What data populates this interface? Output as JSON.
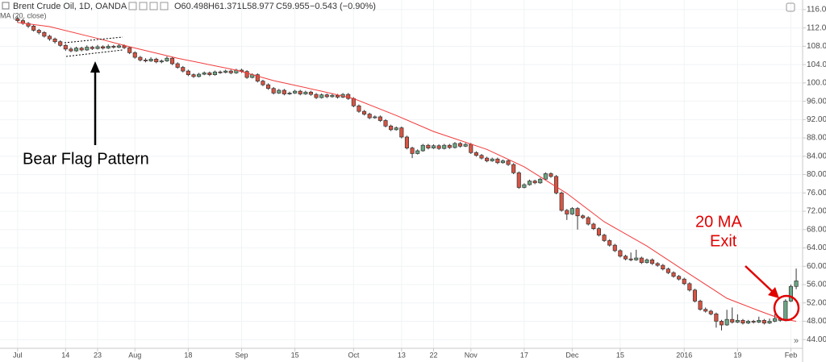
{
  "chart_data": {
    "type": "candlestick",
    "title": "Brent Crude Oil, 1D, OANDA",
    "legend_values": [
      "O60.498",
      "H61.371",
      "L58.977",
      "C59.955",
      "−0.543 (−0.90%)"
    ],
    "up_color": "#6ba583",
    "down_color": "#d75442",
    "ohlc": [
      [
        114.0,
        114.5,
        113.2,
        113.6
      ],
      [
        113.6,
        114.0,
        112.7,
        113.0
      ],
      [
        113.0,
        113.3,
        112.0,
        112.4
      ],
      [
        112.4,
        112.7,
        111.2,
        111.5
      ],
      [
        111.5,
        111.8,
        110.6,
        111.0
      ],
      [
        111.0,
        111.3,
        109.9,
        110.2
      ],
      [
        110.2,
        110.5,
        109.2,
        109.6
      ],
      [
        109.6,
        109.9,
        108.6,
        109.0
      ],
      [
        109.0,
        109.3,
        107.9,
        108.2
      ],
      [
        108.2,
        108.5,
        107.0,
        107.4
      ],
      [
        107.4,
        107.8,
        106.7,
        107.0
      ],
      [
        107.0,
        107.9,
        106.8,
        107.6
      ],
      [
        107.6,
        107.9,
        106.9,
        107.2
      ],
      [
        107.2,
        108.2,
        107.0,
        107.8
      ],
      [
        107.8,
        108.1,
        107.2,
        107.5
      ],
      [
        107.5,
        108.3,
        107.3,
        107.9
      ],
      [
        107.9,
        108.2,
        107.3,
        107.6
      ],
      [
        107.6,
        108.4,
        107.4,
        108.0
      ],
      [
        108.0,
        108.3,
        107.5,
        107.8
      ],
      [
        107.8,
        108.5,
        107.6,
        108.1
      ],
      [
        108.1,
        108.4,
        107.4,
        107.7
      ],
      [
        107.7,
        107.9,
        106.3,
        106.6
      ],
      [
        106.6,
        106.9,
        105.3,
        105.6
      ],
      [
        105.6,
        105.9,
        104.7,
        105.0
      ],
      [
        105.0,
        105.4,
        104.5,
        104.8
      ],
      [
        104.8,
        105.6,
        104.6,
        105.2
      ],
      [
        105.2,
        105.5,
        104.3,
        104.6
      ],
      [
        104.6,
        105.1,
        104.3,
        104.8
      ],
      [
        104.8,
        105.8,
        104.6,
        105.4
      ],
      [
        105.4,
        105.6,
        103.9,
        104.2
      ],
      [
        104.2,
        104.5,
        103.1,
        103.4
      ],
      [
        103.4,
        103.7,
        102.3,
        102.6
      ],
      [
        102.6,
        102.9,
        101.5,
        101.8
      ],
      [
        101.8,
        102.1,
        101.1,
        101.4
      ],
      [
        101.4,
        102.2,
        101.2,
        101.9
      ],
      [
        101.9,
        102.5,
        101.7,
        102.2
      ],
      [
        102.2,
        102.5,
        101.5,
        101.8
      ],
      [
        101.8,
        102.7,
        101.6,
        102.4
      ],
      [
        102.4,
        102.7,
        102.0,
        102.3
      ],
      [
        102.3,
        102.9,
        102.1,
        102.6
      ],
      [
        102.6,
        102.9,
        101.9,
        102.2
      ],
      [
        102.2,
        103.1,
        102.0,
        102.8
      ],
      [
        102.8,
        103.1,
        102.2,
        102.5
      ],
      [
        102.5,
        102.8,
        100.9,
        101.2
      ],
      [
        101.2,
        102.1,
        101.0,
        101.8
      ],
      [
        101.8,
        102.1,
        100.1,
        100.4
      ],
      [
        100.4,
        100.7,
        99.3,
        99.6
      ],
      [
        99.6,
        99.9,
        98.5,
        98.8
      ],
      [
        98.8,
        99.1,
        97.5,
        97.8
      ],
      [
        97.8,
        98.7,
        97.6,
        98.4
      ],
      [
        98.4,
        98.7,
        97.3,
        97.6
      ],
      [
        97.6,
        98.1,
        97.4,
        97.8
      ],
      [
        97.8,
        98.5,
        97.6,
        98.2
      ],
      [
        98.2,
        98.5,
        97.3,
        97.6
      ],
      [
        97.6,
        98.3,
        97.4,
        98.0
      ],
      [
        98.0,
        98.3,
        97.2,
        97.5
      ],
      [
        97.5,
        97.8,
        96.5,
        96.8
      ],
      [
        96.8,
        97.7,
        96.6,
        97.4
      ],
      [
        97.4,
        97.7,
        96.7,
        97.0
      ],
      [
        97.0,
        97.6,
        96.8,
        97.3
      ],
      [
        97.3,
        97.6,
        96.6,
        96.9
      ],
      [
        96.9,
        97.8,
        96.7,
        97.5
      ],
      [
        97.5,
        97.8,
        96.3,
        96.6
      ],
      [
        96.6,
        96.9,
        94.7,
        95.0
      ],
      [
        95.0,
        95.3,
        93.5,
        93.8
      ],
      [
        93.8,
        94.1,
        92.9,
        93.2
      ],
      [
        93.2,
        93.5,
        92.1,
        92.4
      ],
      [
        92.4,
        92.9,
        92.2,
        92.6
      ],
      [
        92.6,
        92.9,
        91.5,
        91.8
      ],
      [
        91.8,
        92.1,
        90.3,
        90.6
      ],
      [
        90.6,
        90.9,
        89.5,
        89.8
      ],
      [
        89.8,
        90.5,
        89.6,
        90.2
      ],
      [
        90.2,
        90.5,
        87.9,
        88.2
      ],
      [
        88.2,
        88.5,
        85.5,
        85.8
      ],
      [
        85.8,
        86.1,
        83.6,
        84.6
      ],
      [
        84.6,
        85.5,
        84.4,
        85.2
      ],
      [
        85.2,
        86.7,
        85.0,
        86.4
      ],
      [
        86.4,
        86.7,
        85.5,
        85.8
      ],
      [
        85.8,
        86.6,
        85.6,
        86.3
      ],
      [
        86.3,
        86.6,
        85.4,
        85.7
      ],
      [
        85.7,
        86.7,
        85.5,
        86.4
      ],
      [
        86.4,
        86.7,
        85.6,
        85.9
      ],
      [
        85.9,
        87.1,
        85.7,
        86.8
      ],
      [
        86.8,
        87.1,
        85.9,
        86.2
      ],
      [
        86.2,
        86.9,
        86.0,
        86.6
      ],
      [
        86.6,
        86.9,
        84.5,
        84.8
      ],
      [
        84.8,
        85.1,
        83.9,
        84.2
      ],
      [
        84.2,
        84.5,
        83.3,
        83.6
      ],
      [
        83.6,
        83.9,
        82.7,
        83.0
      ],
      [
        83.0,
        83.7,
        82.8,
        83.4
      ],
      [
        83.4,
        83.7,
        82.3,
        82.6
      ],
      [
        82.6,
        83.3,
        82.4,
        83.0
      ],
      [
        83.0,
        83.3,
        81.9,
        82.2
      ],
      [
        82.2,
        82.5,
        80.1,
        80.4
      ],
      [
        80.4,
        80.7,
        76.9,
        77.2
      ],
      [
        77.2,
        78.1,
        77.0,
        77.8
      ],
      [
        77.8,
        78.9,
        77.6,
        78.6
      ],
      [
        78.6,
        78.9,
        77.9,
        78.2
      ],
      [
        78.2,
        79.3,
        78.0,
        79.0
      ],
      [
        79.0,
        80.5,
        78.8,
        80.2
      ],
      [
        80.2,
        80.5,
        79.3,
        79.6
      ],
      [
        79.6,
        79.9,
        75.7,
        76.0
      ],
      [
        76.0,
        76.3,
        71.9,
        72.2
      ],
      [
        72.2,
        72.5,
        70.1,
        71.4
      ],
      [
        71.4,
        72.9,
        71.2,
        72.6
      ],
      [
        72.6,
        72.9,
        68.0,
        71.0
      ],
      [
        71.0,
        71.3,
        70.3,
        70.6
      ],
      [
        70.6,
        70.9,
        68.9,
        69.2
      ],
      [
        69.2,
        69.5,
        67.9,
        68.2
      ],
      [
        68.2,
        68.5,
        66.5,
        66.8
      ],
      [
        66.8,
        67.1,
        65.3,
        65.6
      ],
      [
        65.6,
        65.9,
        64.3,
        64.6
      ],
      [
        64.6,
        64.9,
        63.1,
        63.4
      ],
      [
        63.4,
        63.7,
        61.9,
        62.2
      ],
      [
        62.2,
        62.5,
        61.3,
        61.6
      ],
      [
        61.6,
        63.0,
        61.1,
        61.4
      ],
      [
        61.4,
        63.6,
        61.2,
        61.8
      ],
      [
        61.8,
        62.1,
        60.5,
        60.8
      ],
      [
        60.8,
        61.7,
        60.6,
        61.4
      ],
      [
        61.4,
        61.7,
        60.3,
        60.6
      ],
      [
        60.6,
        60.9,
        59.9,
        60.2
      ],
      [
        60.2,
        60.5,
        59.1,
        59.4
      ],
      [
        59.4,
        59.7,
        58.3,
        58.6
      ],
      [
        58.6,
        58.9,
        57.5,
        57.8
      ],
      [
        57.8,
        58.1,
        56.9,
        57.2
      ],
      [
        57.2,
        57.5,
        55.9,
        56.2
      ],
      [
        56.2,
        56.5,
        54.5,
        54.8
      ],
      [
        54.8,
        55.1,
        52.1,
        52.4
      ],
      [
        52.4,
        52.7,
        50.3,
        50.6
      ],
      [
        50.6,
        51.0,
        49.9,
        50.2
      ],
      [
        50.2,
        50.5,
        49.3,
        49.6
      ],
      [
        49.6,
        49.9,
        46.6,
        48.0
      ],
      [
        48.0,
        48.3,
        46.0,
        47.2
      ],
      [
        47.2,
        50.5,
        47.0,
        48.4
      ],
      [
        48.4,
        51.0,
        47.5,
        47.8
      ],
      [
        47.8,
        49.5,
        47.6,
        48.2
      ],
      [
        48.2,
        48.5,
        47.3,
        47.6
      ],
      [
        47.6,
        48.3,
        47.4,
        48.0
      ],
      [
        48.0,
        48.3,
        47.5,
        47.8
      ],
      [
        47.8,
        49.0,
        47.6,
        48.2
      ],
      [
        48.2,
        48.5,
        47.3,
        47.6
      ],
      [
        47.6,
        48.6,
        47.4,
        48.0
      ],
      [
        48.0,
        49.6,
        47.8,
        48.6
      ],
      [
        48.6,
        48.9,
        47.9,
        48.2
      ],
      [
        48.2,
        52.8,
        48.0,
        52.4
      ],
      [
        52.4,
        56.0,
        52.2,
        55.6
      ],
      [
        55.6,
        59.5,
        55.0,
        56.8
      ]
    ],
    "ma": {
      "name": "MA (20, close)",
      "color": "#f23b3b",
      "x": [
        0,
        6,
        15,
        21,
        30,
        41,
        48,
        57,
        63,
        71,
        78,
        88,
        95,
        103,
        110,
        118,
        126,
        133,
        139,
        143,
        146
      ],
      "values": [
        113.2,
        112.3,
        109.7,
        107.9,
        105.4,
        102.8,
        100.5,
        98.2,
        96.6,
        92.9,
        89.4,
        85.5,
        81.7,
        75.9,
        69.7,
        64.4,
        58.3,
        53.0,
        50.3,
        48.6,
        48.0
      ]
    },
    "xlim": [
      -3.3,
      147.2
    ],
    "xticks": [
      {
        "value": 0,
        "label": "Jul"
      },
      {
        "value": 9,
        "label": "14"
      },
      {
        "value": 15,
        "label": "23"
      },
      {
        "value": 22,
        "label": "Aug"
      },
      {
        "value": 32,
        "label": "18"
      },
      {
        "value": 42,
        "label": "Sep"
      },
      {
        "value": 52,
        "label": "15"
      },
      {
        "value": 63,
        "label": "Oct"
      },
      {
        "value": 72,
        "label": "13"
      },
      {
        "value": 78,
        "label": "22"
      },
      {
        "value": 85,
        "label": "Nov"
      },
      {
        "value": 95,
        "label": "17"
      },
      {
        "value": 104,
        "label": "Dec"
      },
      {
        "value": 113,
        "label": "15"
      },
      {
        "value": 125,
        "label": "2016"
      },
      {
        "value": 135,
        "label": "19"
      },
      {
        "value": 145,
        "label": "Feb"
      }
    ],
    "ylim": [
      42.1,
      118.1
    ],
    "yticks": [
      {
        "value": 116,
        "label": "116.000"
      },
      {
        "value": 112,
        "label": "112.000"
      },
      {
        "value": 108,
        "label": "108.000"
      },
      {
        "value": 104,
        "label": "104.000"
      },
      {
        "value": 100,
        "label": "100.000"
      },
      {
        "value": 96,
        "label": "96.000"
      },
      {
        "value": 92,
        "label": "92.000"
      },
      {
        "value": 88,
        "label": "88.000"
      },
      {
        "value": 84,
        "label": "84.000"
      },
      {
        "value": 80,
        "label": "80.000"
      },
      {
        "value": 76,
        "label": "76.000"
      },
      {
        "value": 72,
        "label": "72.000"
      },
      {
        "value": 68,
        "label": "68.000"
      },
      {
        "value": 64,
        "label": "64.000"
      },
      {
        "value": 60,
        "label": "60.000"
      },
      {
        "value": 56,
        "label": "56.000"
      },
      {
        "value": 52,
        "label": "52.000"
      },
      {
        "value": 48,
        "label": "48.000"
      },
      {
        "value": 44,
        "label": "44.000"
      }
    ],
    "grid": true,
    "annotations": [
      "Bear Flag Pattern",
      "20 MA",
      "Exit"
    ]
  }
}
